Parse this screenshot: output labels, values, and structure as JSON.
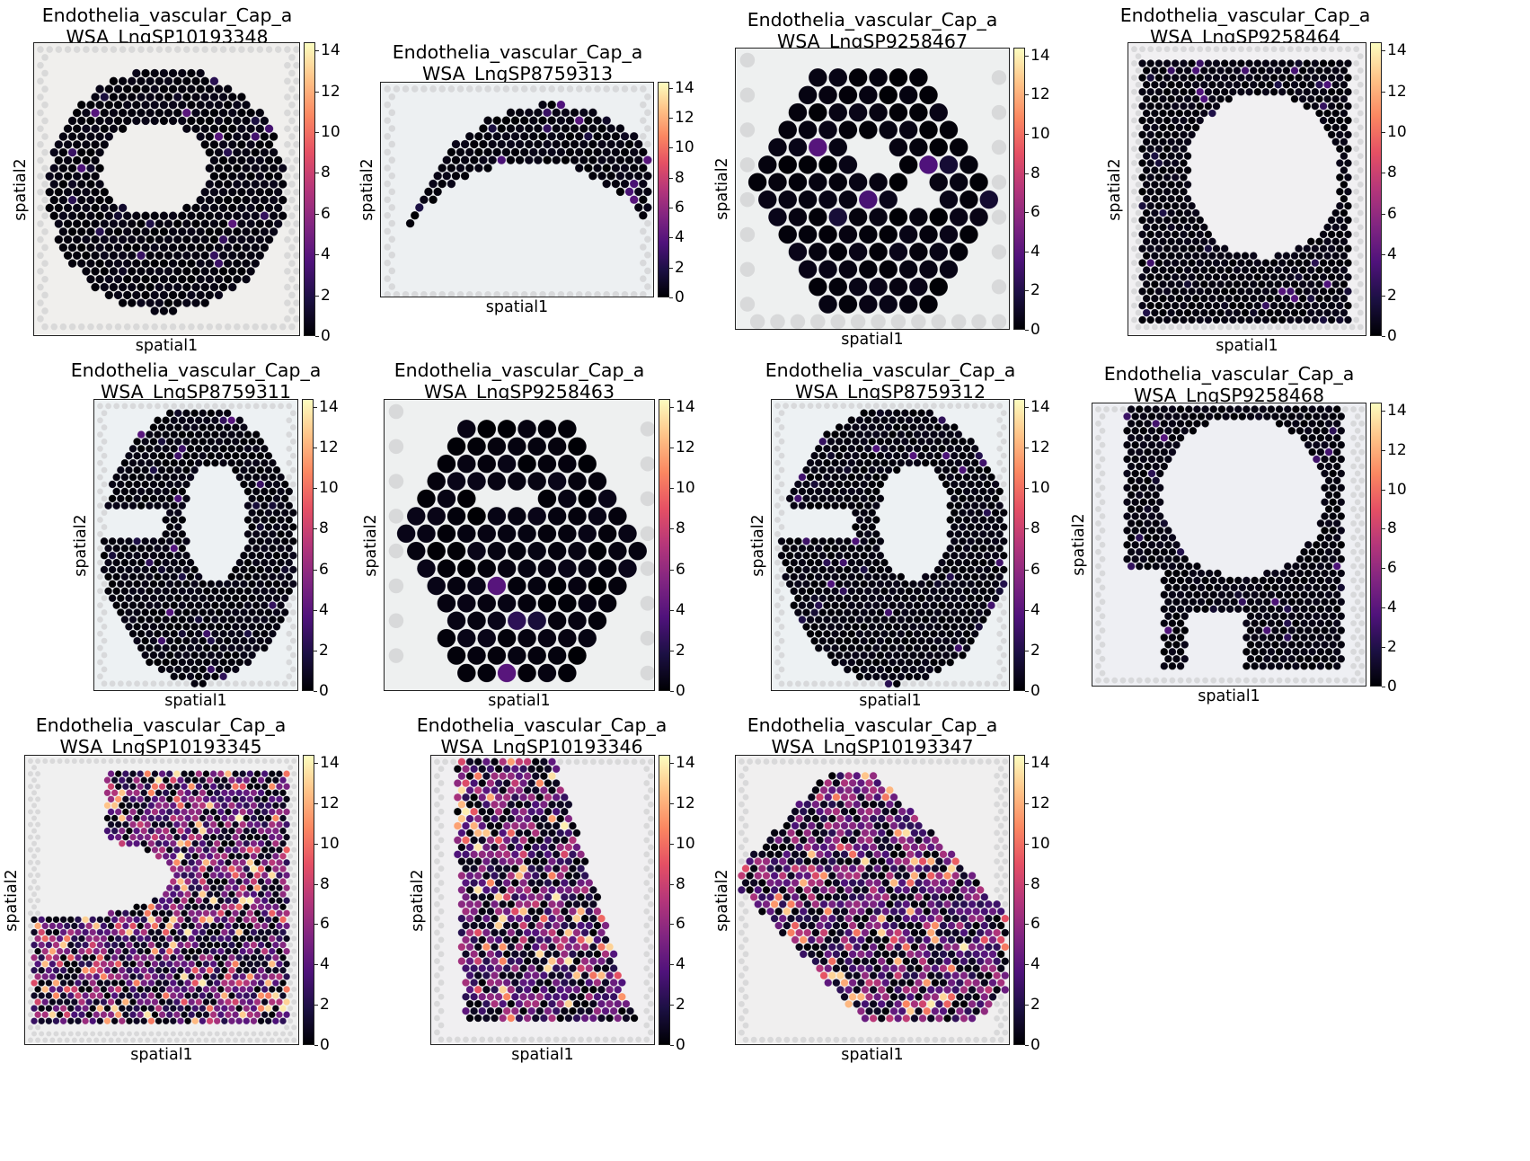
{
  "chart_data": [
    {
      "type": "scatter",
      "title": "Endothelia_vascular_Cap_a\nWSA_LngSP10193348",
      "xlabel": "spatial1",
      "ylabel": "spatial2",
      "colorbar_ticks": [
        "0",
        "2",
        "4",
        "6",
        "8",
        "10",
        "12",
        "14"
      ],
      "colorbar_range": [
        0,
        14.4
      ],
      "colormap": "magma"
    },
    {
      "type": "scatter",
      "title": "Endothelia_vascular_Cap_a\nWSA_LngSP8759313",
      "xlabel": "spatial1",
      "ylabel": "spatial2",
      "colorbar_ticks": [
        "0",
        "2",
        "4",
        "6",
        "8",
        "10",
        "12",
        "14"
      ],
      "colorbar_range": [
        0,
        14.4
      ],
      "colormap": "magma"
    },
    {
      "type": "scatter",
      "title": "Endothelia_vascular_Cap_a\nWSA_LngSP9258467",
      "xlabel": "spatial1",
      "ylabel": "spatial2",
      "colorbar_ticks": [
        "0",
        "2",
        "4",
        "6",
        "8",
        "10",
        "12",
        "14"
      ],
      "colorbar_range": [
        0,
        14.4
      ],
      "colormap": "magma"
    },
    {
      "type": "scatter",
      "title": "Endothelia_vascular_Cap_a\nWSA_LngSP9258464",
      "xlabel": "spatial1",
      "ylabel": "spatial2",
      "colorbar_ticks": [
        "0",
        "2",
        "4",
        "6",
        "8",
        "10",
        "12",
        "14"
      ],
      "colorbar_range": [
        0,
        14.4
      ],
      "colormap": "magma"
    },
    {
      "type": "scatter",
      "title": "Endothelia_vascular_Cap_a\nWSA_LngSP8759311",
      "xlabel": "spatial1",
      "ylabel": "spatial2",
      "colorbar_ticks": [
        "0",
        "2",
        "4",
        "6",
        "8",
        "10",
        "12",
        "14"
      ],
      "colorbar_range": [
        0,
        14.4
      ],
      "colormap": "magma"
    },
    {
      "type": "scatter",
      "title": "Endothelia_vascular_Cap_a\nWSA_LngSP9258463",
      "xlabel": "spatial1",
      "ylabel": "spatial2",
      "colorbar_ticks": [
        "0",
        "2",
        "4",
        "6",
        "8",
        "10",
        "12",
        "14"
      ],
      "colorbar_range": [
        0,
        14.4
      ],
      "colormap": "magma"
    },
    {
      "type": "scatter",
      "title": "Endothelia_vascular_Cap_a\nWSA_LngSP8759312",
      "xlabel": "spatial1",
      "ylabel": "spatial2",
      "colorbar_ticks": [
        "0",
        "2",
        "4",
        "6",
        "8",
        "10",
        "12",
        "14"
      ],
      "colorbar_range": [
        0,
        14.4
      ],
      "colormap": "magma"
    },
    {
      "type": "scatter",
      "title": "Endothelia_vascular_Cap_a\nWSA_LngSP9258468",
      "xlabel": "spatial1",
      "ylabel": "spatial2",
      "colorbar_ticks": [
        "0",
        "2",
        "4",
        "6",
        "8",
        "10",
        "12",
        "14"
      ],
      "colorbar_range": [
        0,
        14.4
      ],
      "colormap": "magma"
    },
    {
      "type": "scatter",
      "title": "Endothelia_vascular_Cap_a\nWSA_LngSP10193345",
      "xlabel": "spatial1",
      "ylabel": "spatial2",
      "colorbar_ticks": [
        "0",
        "2",
        "4",
        "6",
        "8",
        "10",
        "12",
        "14"
      ],
      "colorbar_range": [
        0,
        14.4
      ],
      "colormap": "magma"
    },
    {
      "type": "scatter",
      "title": "Endothelia_vascular_Cap_a\nWSA_LngSP10193346",
      "xlabel": "spatial1",
      "ylabel": "spatial2",
      "colorbar_ticks": [
        "0",
        "2",
        "4",
        "6",
        "8",
        "10",
        "12",
        "14"
      ],
      "colorbar_range": [
        0,
        14.4
      ],
      "colormap": "magma"
    },
    {
      "type": "scatter",
      "title": "Endothelia_vascular_Cap_a\nWSA_LngSP10193347",
      "xlabel": "spatial1",
      "ylabel": "spatial2",
      "colorbar_ticks": [
        "0",
        "2",
        "4",
        "6",
        "8",
        "10",
        "12",
        "14"
      ],
      "colorbar_range": [
        0,
        14.4
      ],
      "colormap": "magma"
    }
  ]
}
